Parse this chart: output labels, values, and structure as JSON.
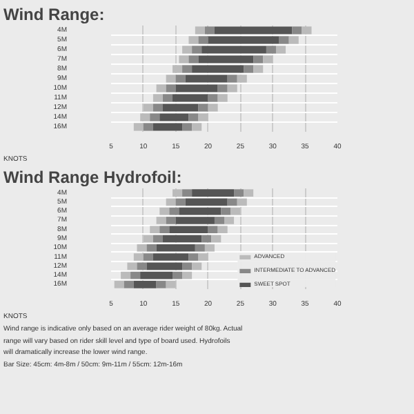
{
  "chart_data": [
    {
      "type": "bar",
      "title": "Wind Range:",
      "orientation": "horizontal",
      "xlabel": "KNOTS",
      "categories": [
        "4M",
        "5M",
        "6M",
        "7M",
        "8M",
        "9M",
        "10M",
        "11M",
        "12M",
        "14M",
        "16M"
      ],
      "series": [
        {
          "color": "#bbbbbb",
          "base": [
            18,
            17,
            16,
            15.5,
            14.5,
            13.5,
            12,
            11.5,
            10,
            9.5,
            8.5
          ],
          "values": [
            1.5,
            1.5,
            1.5,
            1.5,
            1.5,
            1.5,
            1.5,
            1.5,
            1.5,
            1.5,
            1.5
          ]
        },
        {
          "color": "#888888",
          "base": [
            19.5,
            18.5,
            17.5,
            17,
            16,
            15,
            13.5,
            13,
            11.5,
            11,
            10
          ],
          "values": [
            1.5,
            1.5,
            1.5,
            1.5,
            1.5,
            1.5,
            1.5,
            1.5,
            1.5,
            1.5,
            1.5
          ]
        },
        {
          "color": "#555555",
          "base": [
            21,
            20,
            19,
            18.5,
            17.5,
            16.5,
            15,
            14.5,
            13,
            12.5,
            11.5
          ],
          "values": [
            12,
            11,
            10,
            8.5,
            8,
            6.5,
            6.5,
            5.5,
            5.5,
            4.5,
            4.5
          ]
        },
        {
          "color": "#888888",
          "base": [
            33,
            31,
            29,
            27,
            25.5,
            23,
            21.5,
            20,
            18.5,
            17,
            16
          ],
          "values": [
            1.5,
            1.5,
            1.5,
            1.5,
            1.5,
            1.5,
            1.5,
            1.5,
            1.5,
            1.5,
            1.5
          ]
        },
        {
          "color": "#bbbbbb",
          "base": [
            34.5,
            32.5,
            30.5,
            28.5,
            27,
            24.5,
            23,
            21.5,
            20,
            18.5,
            17.5
          ],
          "values": [
            1.5,
            1.5,
            1.5,
            1.5,
            1.5,
            1.5,
            1.5,
            1.5,
            1.5,
            1.5,
            1.5
          ]
        }
      ],
      "xlim": [
        5,
        40
      ],
      "xticks": [
        5,
        10,
        15,
        20,
        25,
        30,
        35,
        40
      ],
      "grid": true
    },
    {
      "type": "bar",
      "title": "Wind Range Hydrofoil:",
      "orientation": "horizontal",
      "xlabel": "KNOTS",
      "categories": [
        "4M",
        "5M",
        "6M",
        "7M",
        "8M",
        "9M",
        "10M",
        "11M",
        "12M",
        "14M",
        "16M"
      ],
      "series": [
        {
          "name": "ADVANCED",
          "color": "#bbbbbb",
          "base": [
            14.5,
            13.5,
            12.5,
            12,
            11,
            10,
            9,
            8.5,
            7.5,
            6.5,
            5.5
          ],
          "values": [
            1.5,
            1.5,
            1.5,
            1.5,
            1.5,
            1.5,
            1.5,
            1.5,
            1.5,
            1.5,
            1.5
          ]
        },
        {
          "name": "INTERMEDIATE TO ADVANCED",
          "color": "#888888",
          "base": [
            16,
            15,
            14,
            13.5,
            12.5,
            11.5,
            10.5,
            10,
            9,
            8,
            7
          ],
          "values": [
            1.5,
            1.5,
            1.5,
            1.5,
            1.5,
            1.5,
            1.5,
            1.5,
            1.5,
            1.5,
            1.5
          ]
        },
        {
          "name": "SWEET SPOT",
          "color": "#555555",
          "base": [
            17.5,
            16.5,
            15.5,
            15,
            14,
            13,
            12,
            11.5,
            10.5,
            9.5,
            8.5
          ],
          "values": [
            6.5,
            6.5,
            6.5,
            6,
            6,
            6,
            6,
            5.5,
            5.5,
            5,
            3.5
          ]
        },
        {
          "color": "#888888",
          "base": [
            24,
            23,
            22,
            21,
            20,
            19,
            18,
            17,
            16,
            14.5,
            12
          ],
          "values": [
            1.5,
            1.5,
            1.5,
            1.5,
            1.5,
            1.5,
            1.5,
            1.5,
            1.5,
            1.5,
            1.5
          ]
        },
        {
          "color": "#bbbbbb",
          "base": [
            25.5,
            24.5,
            23.5,
            22.5,
            21.5,
            20.5,
            19.5,
            18.5,
            17.5,
            16,
            13.5
          ],
          "values": [
            1.5,
            1.5,
            1.5,
            1.5,
            1.5,
            1.5,
            1.5,
            1.5,
            1.5,
            1.5,
            1.5
          ]
        }
      ],
      "xlim": [
        5,
        40
      ],
      "xticks": [
        5,
        10,
        15,
        20,
        25,
        30,
        35,
        40
      ],
      "grid": true,
      "legend": "bottom right",
      "annotations": [
        "Wind range is indicative only based on an average rider weight of 80kg. Actual range will vary based on rider skill level and type of board used. Hydrofoils will dramatically increase the lower wind range.",
        "Bar Size: 45cm: 4m-8m / 50cm: 9m-11m / 55cm: 12m-16m"
      ]
    }
  ]
}
